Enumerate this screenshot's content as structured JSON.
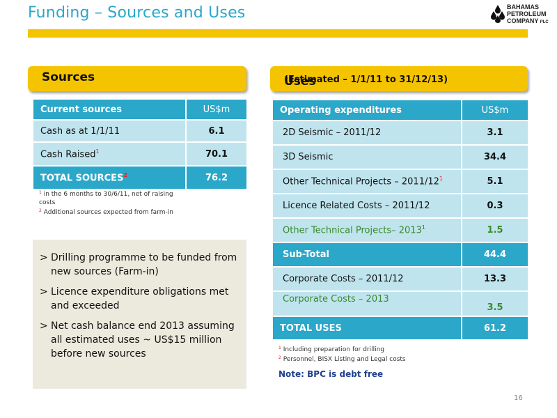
{
  "slide": {
    "title": "Funding – Sources and Uses",
    "page_number": "16",
    "logo": {
      "line1": "Bahamas",
      "line2": "Petroleum",
      "line3": "Company",
      "suffix": "plc"
    }
  },
  "sources": {
    "heading": "Sources",
    "table": {
      "header": [
        "Current sources",
        "US$m"
      ],
      "rows": [
        {
          "label": "Cash as at 1/1/11",
          "sup": "",
          "value": "6.1"
        },
        {
          "label": "Cash Raised",
          "sup": "1",
          "value": "70.1"
        }
      ],
      "total": {
        "label": "TOTAL SOURCES",
        "sup": "2",
        "value": "76.2"
      }
    },
    "footnotes": [
      {
        "num": "1",
        "text": " in the 6 months to 30/6/11, net of raising costs"
      },
      {
        "num": "2",
        "text": " Additional sources expected from farm-in"
      }
    ]
  },
  "bullets": [
    "Drilling programme to be funded from new sources (Farm-in)",
    "Licence expenditure obligations met and exceeded",
    "Net cash balance end 2013 assuming all estimated uses ~ US$15 million before new sources"
  ],
  "bullet_marker": ">",
  "uses": {
    "heading": "Uses",
    "subheading": "(Estimated – 1/1/11 to 31/12/13)",
    "table": {
      "header": [
        "Operating expenditures",
        "US$m"
      ],
      "rows": [
        {
          "label": "2D Seismic – 2011/12",
          "sup": "",
          "value": "3.1"
        },
        {
          "label": "3D Seismic",
          "sup": "",
          "value": "34.4"
        },
        {
          "label": "Other Technical Projects – 2011/12",
          "sup": "1",
          "value": "5.1"
        },
        {
          "label": "Licence Related Costs – 2011/12",
          "sup": "",
          "value": "0.3"
        },
        {
          "label": "Other Technical Projects– 2013",
          "sup": "1",
          "value": "1.5"
        }
      ],
      "subtotal": {
        "label": "Sub-Total",
        "value": "44.4"
      },
      "rows2": [
        {
          "label": "Corporate Costs – 2011/12",
          "value": "13.3"
        },
        {
          "label": "Corporate Costs – 2013",
          "value": "3.5"
        }
      ],
      "total": {
        "label": "TOTAL USES",
        "value": "61.2"
      }
    },
    "footnotes": [
      {
        "num": "1",
        "text": " Including preparation for drilling"
      },
      {
        "num": "2",
        "text": " Personnel, BISX Listing and Legal costs"
      }
    ],
    "note": "Note: BPC is debt free"
  },
  "colors": {
    "accent_yellow": "#f5c400",
    "header_blue": "#2aa7c9",
    "row_blue": "#bfe4ee",
    "green_text": "#3a8a2a",
    "footnote_red": "#d8262b",
    "note_blue": "#1f3f8f"
  }
}
